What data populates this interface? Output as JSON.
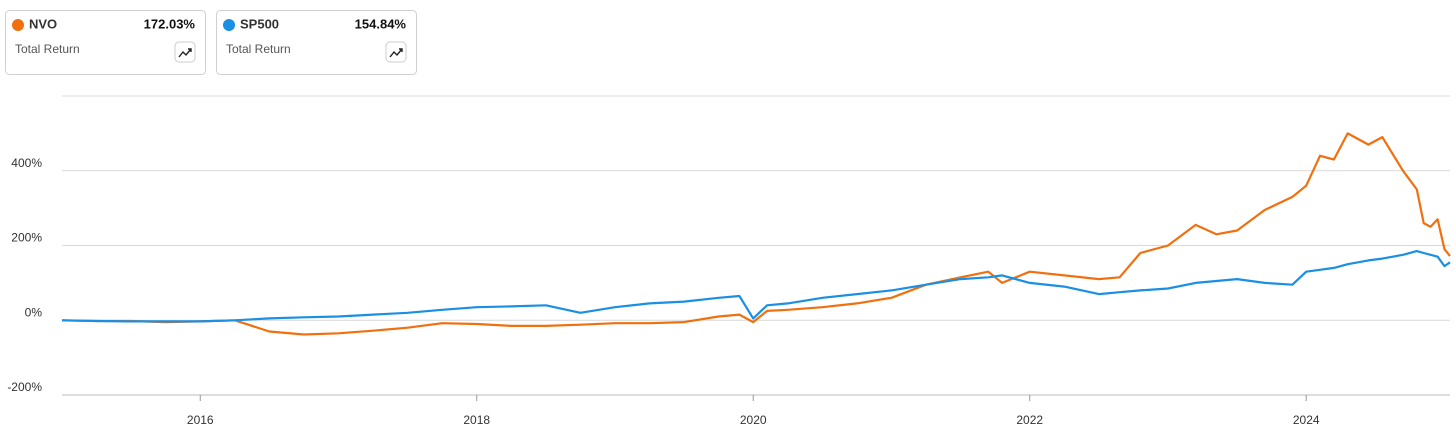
{
  "chart_data": {
    "type": "line",
    "return_label": "Total Return",
    "x": [
      2015,
      2015.25,
      2015.5,
      2015.75,
      2016,
      2016.25,
      2016.5,
      2016.75,
      2017,
      2017.25,
      2017.5,
      2017.75,
      2018,
      2018.25,
      2018.5,
      2018.75,
      2019,
      2019.25,
      2019.5,
      2019.75,
      2019.9,
      2020,
      2020.1,
      2020.25,
      2020.5,
      2020.75,
      2021,
      2021.25,
      2021.5,
      2021.7,
      2021.8,
      2022,
      2022.25,
      2022.5,
      2022.65,
      2022.8,
      2023,
      2023.2,
      2023.35,
      2023.5,
      2023.7,
      2023.9,
      2024,
      2024.1,
      2024.2,
      2024.3,
      2024.45,
      2024.55,
      2024.7,
      2024.8,
      2024.85,
      2024.9,
      2024.95,
      2025,
      2025.04
    ],
    "series": [
      {
        "name": "NVO",
        "color": "#f0700f",
        "total_return": "172.03%",
        "values": [
          0,
          -2,
          -2,
          -5,
          -3,
          0,
          -30,
          -38,
          -35,
          -28,
          -20,
          -8,
          -10,
          -15,
          -15,
          -12,
          -8,
          -8,
          -5,
          10,
          15,
          -5,
          25,
          28,
          35,
          45,
          60,
          95,
          115,
          130,
          100,
          130,
          120,
          110,
          115,
          180,
          200,
          255,
          230,
          240,
          295,
          330,
          360,
          440,
          430,
          500,
          470,
          490,
          400,
          350,
          260,
          250,
          270,
          190,
          172
        ]
      },
      {
        "name": "SP500",
        "color": "#1a8fe3",
        "total_return": "154.84%",
        "values": [
          0,
          -2,
          -3,
          -3,
          -3,
          0,
          5,
          8,
          10,
          15,
          20,
          28,
          35,
          37,
          40,
          20,
          35,
          45,
          50,
          60,
          65,
          5,
          40,
          45,
          60,
          70,
          80,
          95,
          110,
          115,
          120,
          100,
          90,
          70,
          75,
          80,
          85,
          100,
          105,
          110,
          100,
          95,
          130,
          135,
          140,
          150,
          160,
          165,
          175,
          185,
          180,
          175,
          170,
          145,
          155
        ]
      }
    ],
    "xlim": [
      2015,
      2025.04
    ],
    "xticks": [
      2016,
      2018,
      2020,
      2022,
      2024
    ],
    "ylim": [
      -200,
      600
    ],
    "yticks": [
      {
        "value": -200,
        "label": "-200%"
      },
      {
        "value": 0,
        "label": "0%"
      },
      {
        "value": 200,
        "label": "200%"
      },
      {
        "value": 400,
        "label": "400%"
      }
    ],
    "grid": true
  }
}
